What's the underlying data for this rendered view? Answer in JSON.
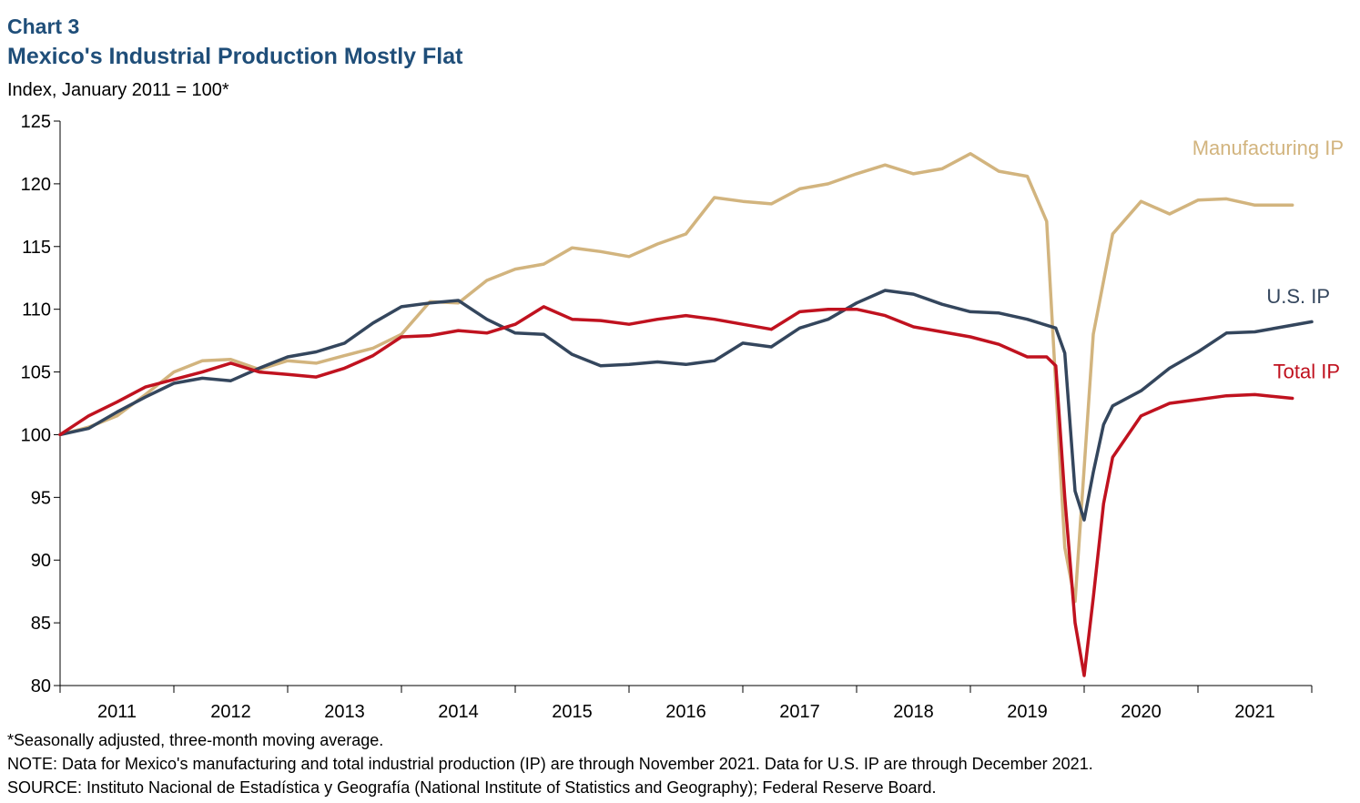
{
  "header": {
    "chart_label": "Chart 3",
    "title": "Mexico's Industrial Production Mostly Flat",
    "subtitle": "Index, January 2011 = 100*"
  },
  "footnotes": {
    "note1": "*Seasonally adjusted, three-month moving average.",
    "note2": "NOTE: Data for Mexico's manufacturing and total industrial production (IP) are through November 2021. Data for U.S. IP are through December 2021.",
    "source": "SOURCE: Instituto Nacional de Estadística y Geografía (National Institute of Statistics and Geography); Federal Reserve Board."
  },
  "chart_data": {
    "type": "line",
    "title": "Mexico's Industrial Production Mostly Flat",
    "ylabel": "Index, January 2011 = 100*",
    "xlabel": "",
    "ylim": [
      80,
      125
    ],
    "yticks": [
      80,
      85,
      90,
      95,
      100,
      105,
      110,
      115,
      120,
      125
    ],
    "xlim": [
      2011.0,
      2022.0
    ],
    "x_categories": [
      "2011",
      "2012",
      "2013",
      "2014",
      "2015",
      "2016",
      "2017",
      "2018",
      "2019",
      "2020",
      "2021"
    ],
    "grid": false,
    "legend": "inline labels at right end of each series",
    "series": [
      {
        "name": "Manufacturing IP",
        "color": "#d2b47e",
        "start": 2011.0,
        "points": [
          [
            0,
            100
          ],
          [
            0.25,
            100.6
          ],
          [
            0.5,
            101.5
          ],
          [
            0.75,
            103.2
          ],
          [
            1.0,
            105.0
          ],
          [
            1.25,
            105.9
          ],
          [
            1.5,
            106.0
          ],
          [
            1.75,
            105.2
          ],
          [
            2.0,
            105.9
          ],
          [
            2.25,
            105.7
          ],
          [
            2.5,
            106.3
          ],
          [
            2.75,
            106.9
          ],
          [
            3.0,
            108.0
          ],
          [
            3.25,
            110.6
          ],
          [
            3.5,
            110.5
          ],
          [
            3.75,
            112.3
          ],
          [
            4.0,
            113.2
          ],
          [
            4.25,
            113.6
          ],
          [
            4.5,
            114.9
          ],
          [
            4.75,
            114.6
          ],
          [
            5.0,
            114.2
          ],
          [
            5.25,
            115.2
          ],
          [
            5.5,
            116.0
          ],
          [
            5.75,
            118.9
          ],
          [
            6.0,
            118.6
          ],
          [
            6.25,
            118.4
          ],
          [
            6.5,
            119.6
          ],
          [
            6.75,
            120.0
          ],
          [
            7.0,
            120.8
          ],
          [
            7.25,
            121.5
          ],
          [
            7.5,
            120.8
          ],
          [
            7.75,
            121.2
          ],
          [
            8.0,
            122.4
          ],
          [
            8.25,
            121.0
          ],
          [
            8.5,
            120.6
          ],
          [
            8.67,
            117.0
          ],
          [
            8.83,
            91.0
          ],
          [
            8.92,
            86.7
          ],
          [
            9.08,
            108.0
          ],
          [
            9.25,
            116.0
          ],
          [
            9.5,
            118.6
          ],
          [
            9.75,
            117.6
          ],
          [
            10.0,
            118.7
          ],
          [
            10.25,
            118.8
          ],
          [
            10.5,
            118.3
          ],
          [
            10.83,
            118.3
          ]
        ]
      },
      {
        "name": "U.S. IP",
        "color": "#34465d",
        "start": 2011.0,
        "points": [
          [
            0,
            100
          ],
          [
            0.25,
            100.5
          ],
          [
            0.5,
            101.8
          ],
          [
            0.75,
            103.0
          ],
          [
            1.0,
            104.1
          ],
          [
            1.25,
            104.5
          ],
          [
            1.5,
            104.3
          ],
          [
            1.75,
            105.3
          ],
          [
            2.0,
            106.2
          ],
          [
            2.25,
            106.6
          ],
          [
            2.5,
            107.3
          ],
          [
            2.75,
            108.9
          ],
          [
            3.0,
            110.2
          ],
          [
            3.25,
            110.5
          ],
          [
            3.5,
            110.7
          ],
          [
            3.75,
            109.2
          ],
          [
            4.0,
            108.1
          ],
          [
            4.25,
            108.0
          ],
          [
            4.5,
            106.4
          ],
          [
            4.75,
            105.5
          ],
          [
            5.0,
            105.6
          ],
          [
            5.25,
            105.8
          ],
          [
            5.5,
            105.6
          ],
          [
            5.75,
            105.9
          ],
          [
            6.0,
            107.3
          ],
          [
            6.25,
            107.0
          ],
          [
            6.5,
            108.5
          ],
          [
            6.75,
            109.2
          ],
          [
            7.0,
            110.5
          ],
          [
            7.25,
            111.5
          ],
          [
            7.5,
            111.2
          ],
          [
            7.75,
            110.4
          ],
          [
            8.0,
            109.8
          ],
          [
            8.25,
            109.7
          ],
          [
            8.5,
            109.2
          ],
          [
            8.75,
            108.5
          ],
          [
            8.83,
            106.5
          ],
          [
            8.92,
            95.5
          ],
          [
            9.0,
            93.2
          ],
          [
            9.08,
            97.0
          ],
          [
            9.17,
            100.8
          ],
          [
            9.25,
            102.3
          ],
          [
            9.5,
            103.5
          ],
          [
            9.75,
            105.3
          ],
          [
            10.0,
            106.6
          ],
          [
            10.25,
            108.1
          ],
          [
            10.5,
            108.2
          ],
          [
            11.0,
            109.0
          ]
        ]
      },
      {
        "name": "Total IP",
        "color": "#c0121f",
        "start": 2011.0,
        "points": [
          [
            0,
            100
          ],
          [
            0.25,
            101.5
          ],
          [
            0.5,
            102.6
          ],
          [
            0.75,
            103.8
          ],
          [
            1.0,
            104.4
          ],
          [
            1.25,
            105.0
          ],
          [
            1.5,
            105.7
          ],
          [
            1.75,
            105.0
          ],
          [
            2.0,
            104.8
          ],
          [
            2.25,
            104.6
          ],
          [
            2.5,
            105.3
          ],
          [
            2.75,
            106.3
          ],
          [
            3.0,
            107.8
          ],
          [
            3.25,
            107.9
          ],
          [
            3.5,
            108.3
          ],
          [
            3.75,
            108.1
          ],
          [
            4.0,
            108.8
          ],
          [
            4.25,
            110.2
          ],
          [
            4.5,
            109.2
          ],
          [
            4.75,
            109.1
          ],
          [
            5.0,
            108.8
          ],
          [
            5.25,
            109.2
          ],
          [
            5.5,
            109.5
          ],
          [
            5.75,
            109.2
          ],
          [
            6.0,
            108.8
          ],
          [
            6.25,
            108.4
          ],
          [
            6.5,
            109.8
          ],
          [
            6.75,
            110.0
          ],
          [
            7.0,
            110.0
          ],
          [
            7.25,
            109.5
          ],
          [
            7.5,
            108.6
          ],
          [
            7.75,
            108.2
          ],
          [
            8.0,
            107.8
          ],
          [
            8.25,
            107.2
          ],
          [
            8.5,
            106.2
          ],
          [
            8.67,
            106.2
          ],
          [
            8.75,
            105.5
          ],
          [
            8.83,
            95.0
          ],
          [
            8.92,
            85.0
          ],
          [
            9.0,
            80.8
          ],
          [
            9.08,
            87.0
          ],
          [
            9.17,
            94.5
          ],
          [
            9.25,
            98.2
          ],
          [
            9.5,
            101.5
          ],
          [
            9.75,
            102.5
          ],
          [
            10.0,
            102.8
          ],
          [
            10.25,
            103.1
          ],
          [
            10.5,
            103.2
          ],
          [
            10.83,
            102.9
          ]
        ]
      }
    ],
    "series_labels": [
      "Manufacturing IP",
      "U.S. IP",
      "Total IP"
    ]
  }
}
